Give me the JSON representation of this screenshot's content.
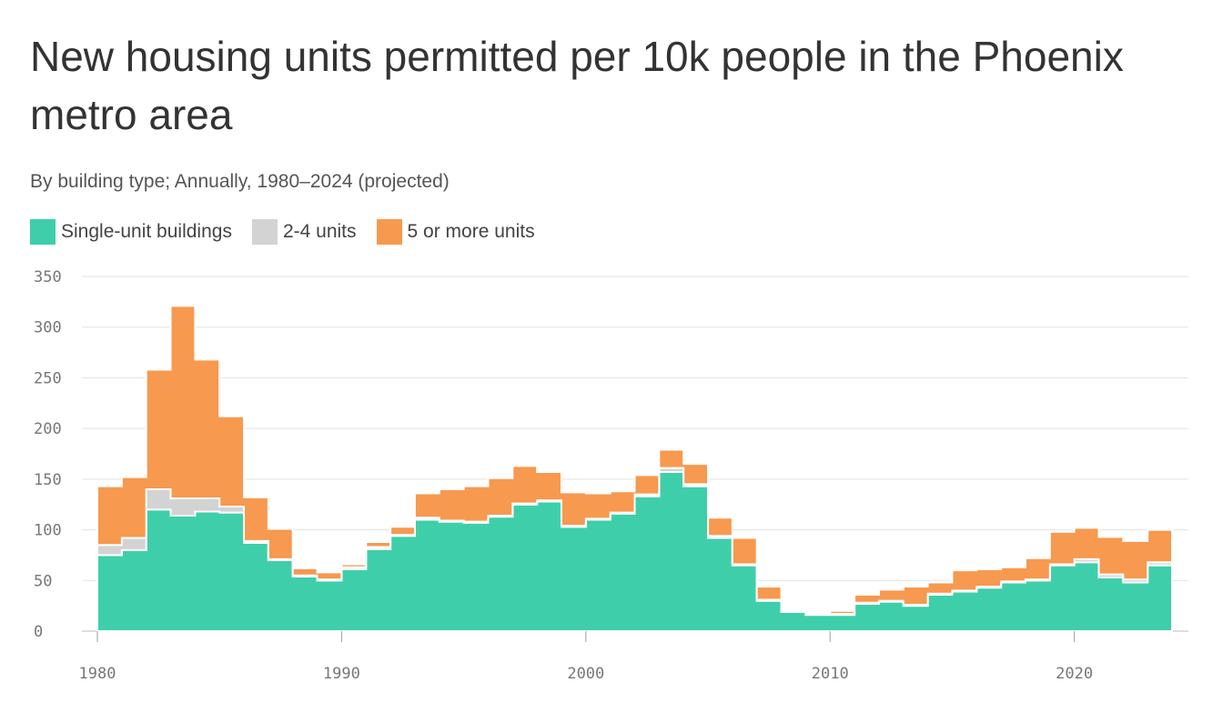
{
  "header": {
    "title": "New housing units permitted per 10k people in the Phoenix metro area",
    "subtitle": "By building type; Annually, 1980–2024 (projected)"
  },
  "legend": {
    "items": [
      {
        "label": "Single-unit buildings",
        "color": "#3ecfaa"
      },
      {
        "label": "2-4 units",
        "color": "#d3d3d3"
      },
      {
        "label": "5 or more units",
        "color": "#f7994f"
      }
    ]
  },
  "chart_data": {
    "type": "area",
    "stacked": true,
    "step": true,
    "x": [
      1980,
      1981,
      1982,
      1983,
      1984,
      1985,
      1986,
      1987,
      1988,
      1989,
      1990,
      1991,
      1992,
      1993,
      1994,
      1995,
      1996,
      1997,
      1998,
      1999,
      2000,
      2001,
      2002,
      2003,
      2004,
      2005,
      2006,
      2007,
      2008,
      2009,
      2010,
      2011,
      2012,
      2013,
      2014,
      2015,
      2016,
      2017,
      2018,
      2019,
      2020,
      2021,
      2022,
      2023
    ],
    "series": [
      {
        "name": "Single-unit buildings",
        "color": "#3ecfaa",
        "values": [
          75,
          80,
          120,
          114,
          118,
          117,
          87,
          70,
          54,
          50,
          61,
          81,
          94,
          110,
          108,
          107,
          113,
          125,
          128,
          103,
          110,
          116,
          133,
          157,
          143,
          92,
          65,
          30,
          19,
          16,
          16,
          27,
          29,
          25,
          36,
          39,
          43,
          48,
          50,
          65,
          68,
          53,
          48,
          65
        ]
      },
      {
        "name": "2-4 units",
        "color": "#d3d3d3",
        "values": [
          10,
          12,
          20,
          17,
          13,
          6,
          2,
          1,
          1,
          1,
          2,
          2,
          1,
          2,
          1,
          1,
          1,
          1,
          1,
          1,
          1,
          1,
          2,
          4,
          2,
          2,
          1,
          1,
          1,
          1,
          1,
          1,
          1,
          1,
          1,
          1,
          1,
          1,
          1,
          1,
          3,
          3,
          3,
          3
        ]
      },
      {
        "name": "5 or more units",
        "color": "#f7994f",
        "values": [
          58,
          60,
          118,
          190,
          137,
          89,
          43,
          30,
          7,
          7,
          3,
          5,
          8,
          24,
          31,
          35,
          37,
          37,
          28,
          33,
          25,
          21,
          19,
          18,
          20,
          18,
          26,
          13,
          1,
          1,
          3,
          8,
          11,
          18,
          11,
          20,
          17,
          14,
          21,
          32,
          31,
          37,
          38,
          32
        ]
      }
    ],
    "xticks": [
      1980,
      1990,
      2000,
      2010,
      2020
    ],
    "xtick_labels": [
      "1980",
      "1990",
      "2000",
      "2010",
      "2020"
    ],
    "yticks": [
      0,
      50,
      100,
      150,
      200,
      250,
      300,
      350
    ],
    "ytick_labels": [
      "0",
      "50",
      "100",
      "150",
      "200",
      "250",
      "300",
      "350"
    ],
    "xlim": [
      1980,
      2024
    ],
    "ylim": [
      0,
      350
    ],
    "grid": true,
    "legend_position": "top-left"
  }
}
